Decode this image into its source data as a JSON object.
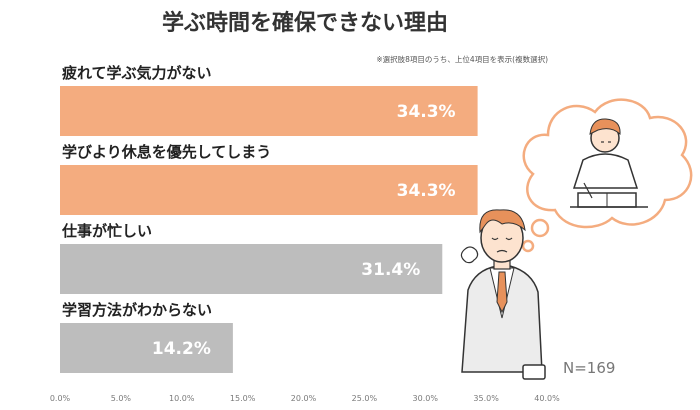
{
  "chart_data": {
    "type": "bar",
    "orientation": "horizontal",
    "title": "学ぶ時間を確保できない理由",
    "note": "※選択肢8項目のうち、上位4項目を表示(複数選択)",
    "categories": [
      "疲れて学ぶ気力がない",
      "学びより休息を優先してしまう",
      "仕事が忙しい",
      "学習方法がわからない"
    ],
    "values": [
      34.3,
      34.3,
      31.4,
      14.2
    ],
    "value_labels": [
      "34.3%",
      "34.3%",
      "31.4%",
      "14.2%"
    ],
    "bar_colors": [
      "#f4ac7f",
      "#f4ac7f",
      "#bdbdbd",
      "#bdbdbd"
    ],
    "xlim": [
      0,
      40
    ],
    "xticks": [
      0,
      5,
      10,
      15,
      20,
      25,
      30,
      35,
      40
    ],
    "xtick_labels": [
      "0.0%",
      "5.0%",
      "10.0%",
      "15.0%",
      "20.0%",
      "25.0%",
      "30.0%",
      "35.0%",
      "40.0%"
    ],
    "grid": false,
    "sample_size": "N=169"
  }
}
